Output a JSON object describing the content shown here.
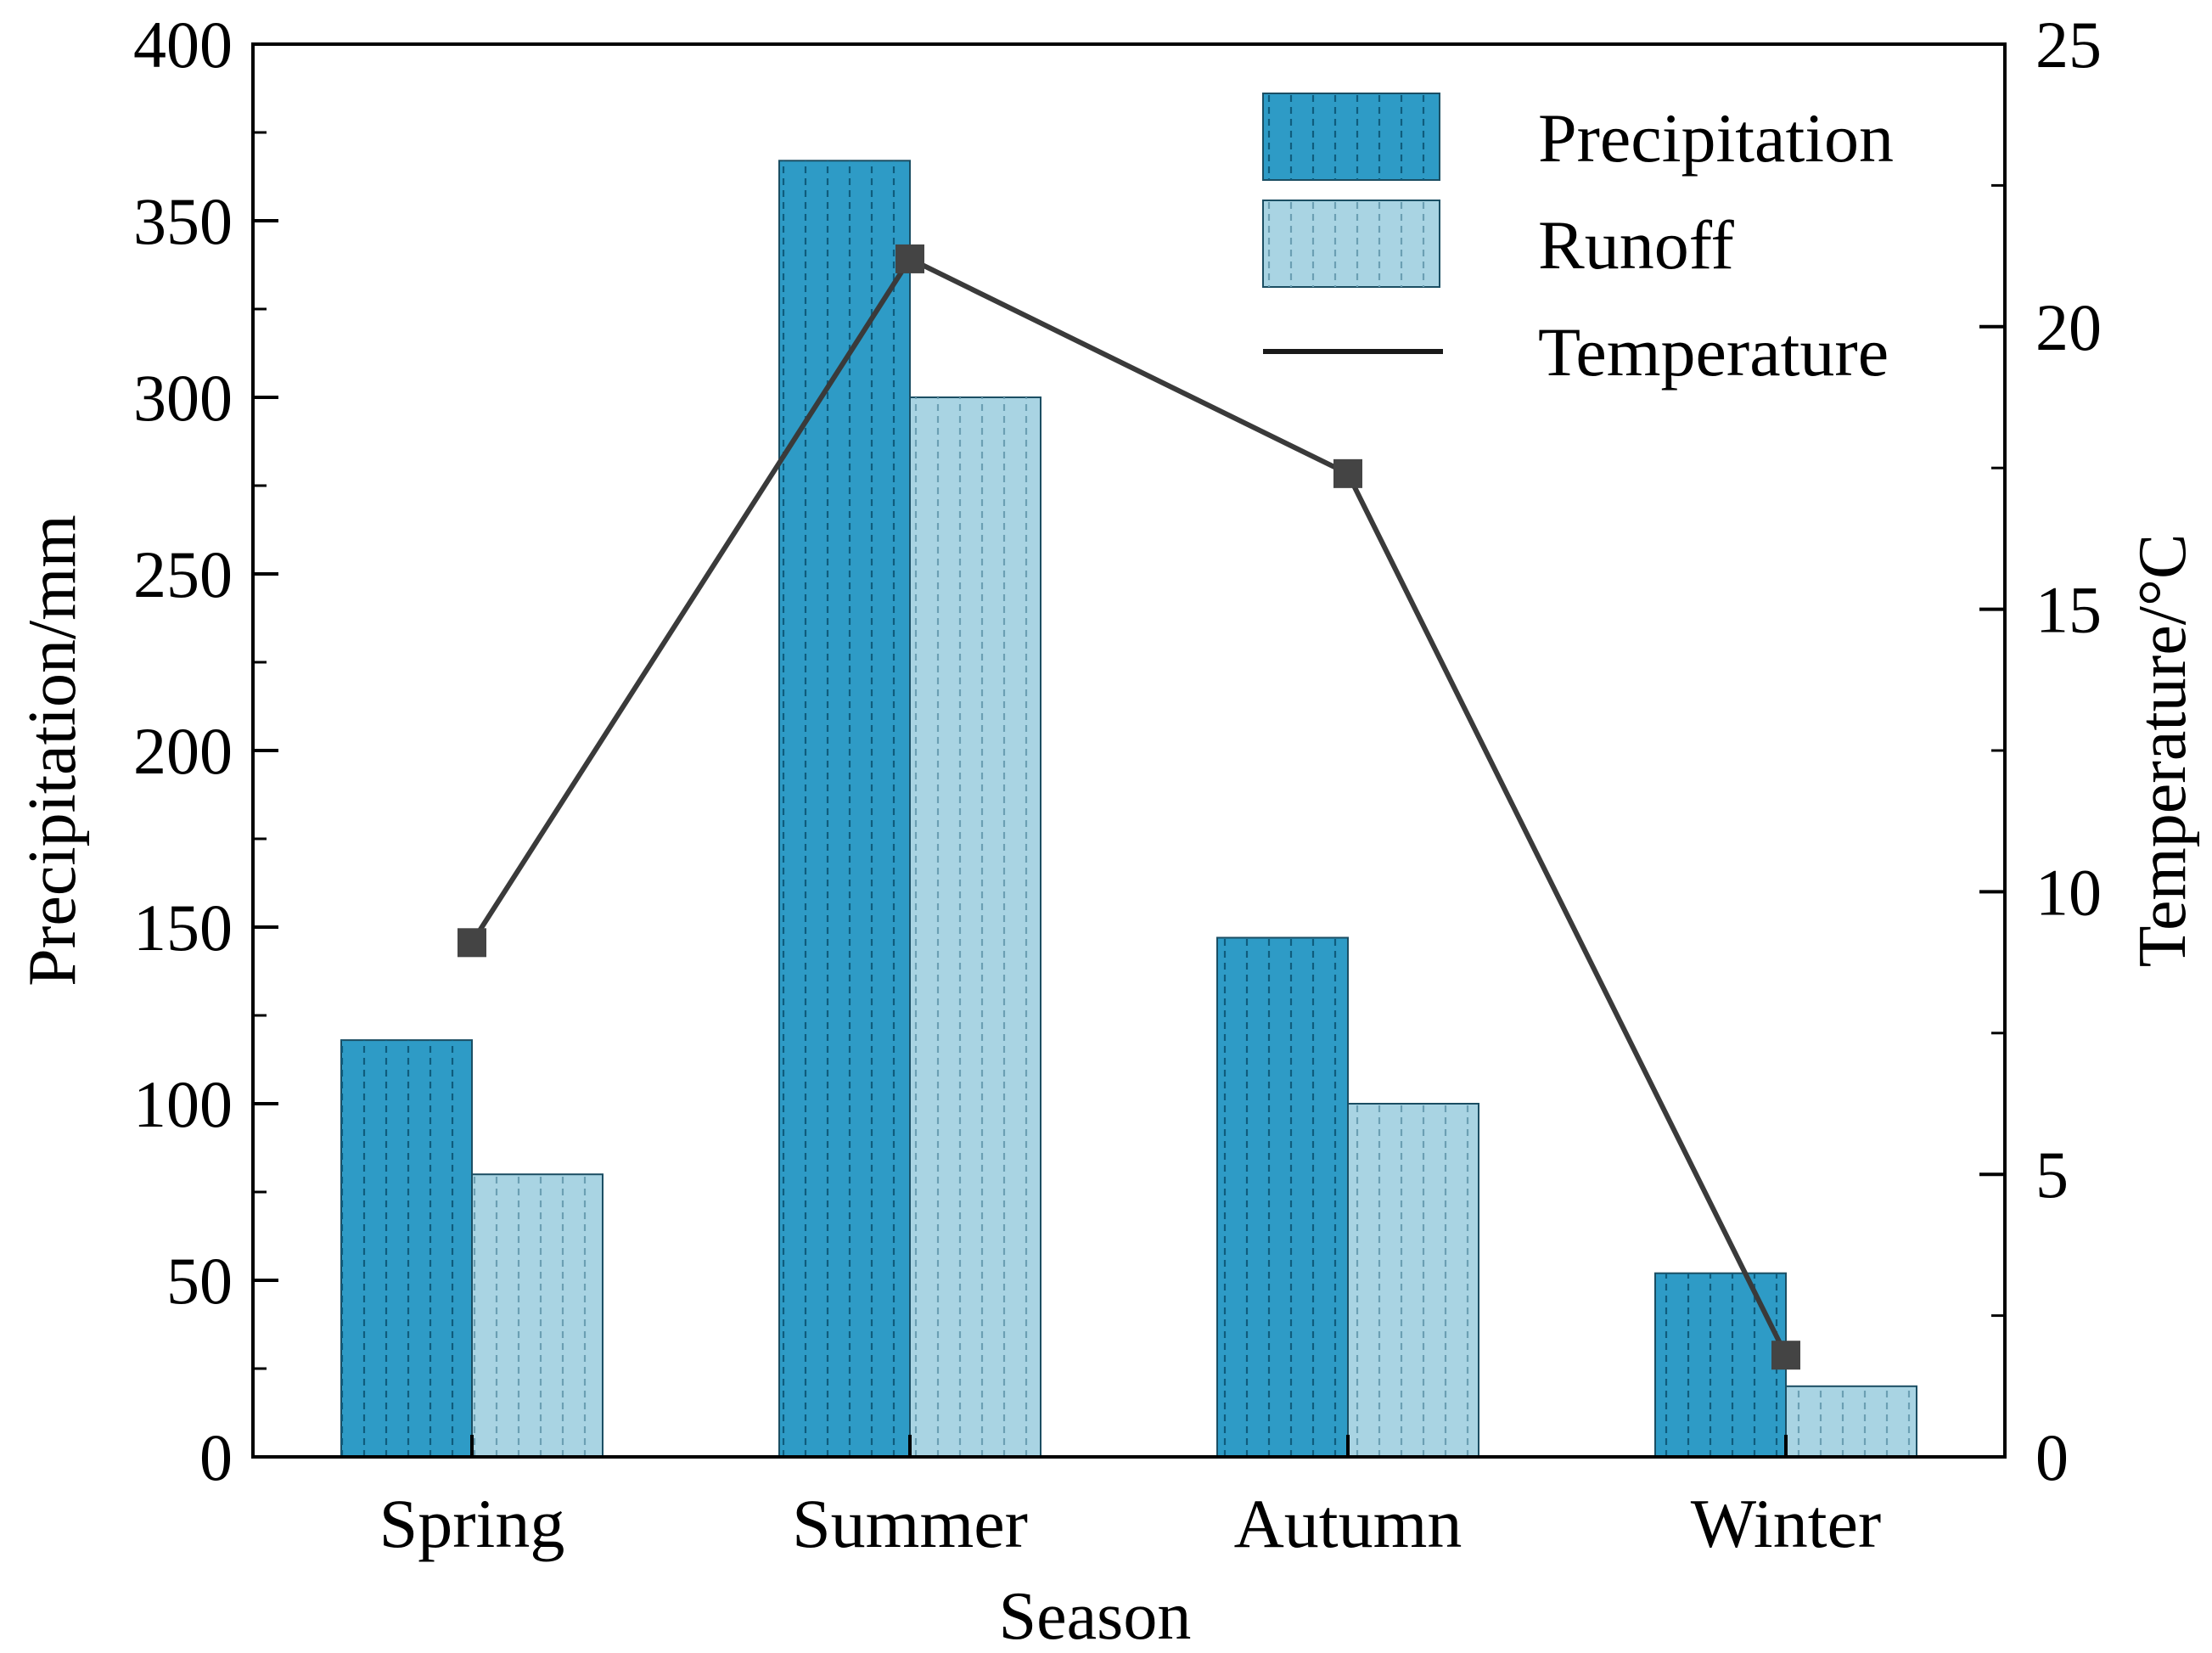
{
  "chart_data": {
    "type": "bar",
    "categories": [
      "Spring",
      "Summer",
      "Autumn",
      "Winter"
    ],
    "series": [
      {
        "name": "Precipitation",
        "kind": "bar",
        "axis": "left",
        "values": [
          118,
          367,
          147,
          52
        ],
        "color": "#2e9bc6"
      },
      {
        "name": "Runoff",
        "kind": "bar",
        "axis": "left",
        "values": [
          80,
          300,
          100,
          20
        ],
        "color": "#a9d4e3"
      },
      {
        "name": "Temperature",
        "kind": "line",
        "axis": "right",
        "values": [
          9.1,
          21.2,
          17.4,
          1.8
        ],
        "color": "#3a3a3a",
        "marker": "square"
      }
    ],
    "xlabel": "Season",
    "ylabel": "Precipitation/mm",
    "y2label": "Temperature/°C",
    "ylim": [
      0,
      400
    ],
    "y2lim": [
      0,
      25
    ],
    "yticks": [
      "0",
      "50",
      "100",
      "150",
      "200",
      "250",
      "300",
      "350",
      "400"
    ],
    "y2ticks": [
      "0",
      "5",
      "10",
      "15",
      "20",
      "25"
    ],
    "legend": {
      "placement": "top-right",
      "entries": [
        "Precipitation",
        "Runoff",
        "Temperature"
      ]
    },
    "grid": false
  }
}
